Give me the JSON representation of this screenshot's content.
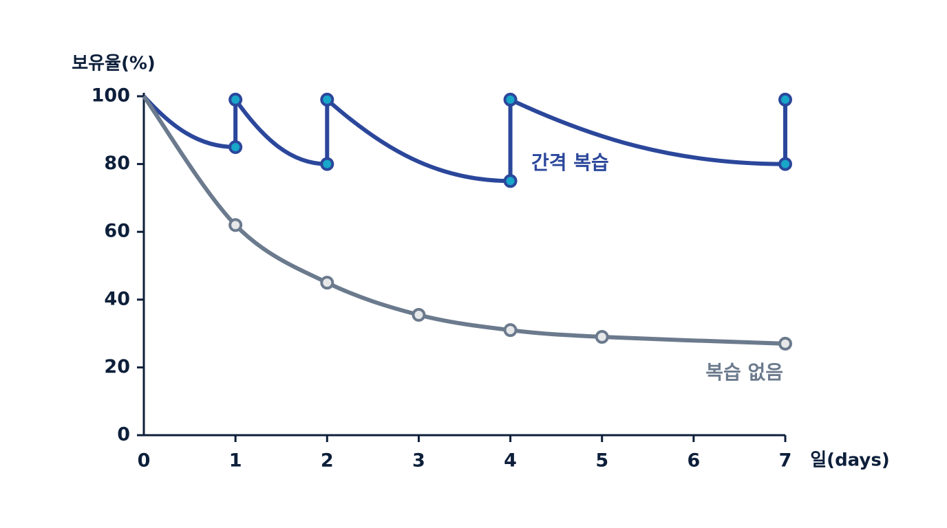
{
  "chart_data": {
    "type": "line",
    "y_label": "보유율(%)",
    "x_label": "일(days)",
    "xlim": [
      0,
      7
    ],
    "xticks": [
      0,
      1,
      2,
      3,
      4,
      5,
      6,
      7
    ],
    "ylim": [
      0,
      100
    ],
    "yticks": [
      0,
      20,
      40,
      60,
      80,
      100
    ],
    "series": [
      {
        "name": "간격 복습",
        "color": "#2b479b",
        "marker_color": "#18a6c9",
        "x": [
          0,
          1,
          1,
          2,
          2,
          4,
          4,
          7,
          7
        ],
        "values": [
          100,
          85,
          99,
          80,
          99,
          75,
          99,
          80,
          99
        ]
      },
      {
        "name": "복습 없음",
        "color": "#6b7a8d",
        "marker_color": "#e6e7e9",
        "x": [
          0,
          1,
          2,
          3,
          4,
          5,
          7
        ],
        "values": [
          100,
          62,
          45,
          35.5,
          31,
          29,
          27
        ]
      }
    ]
  }
}
